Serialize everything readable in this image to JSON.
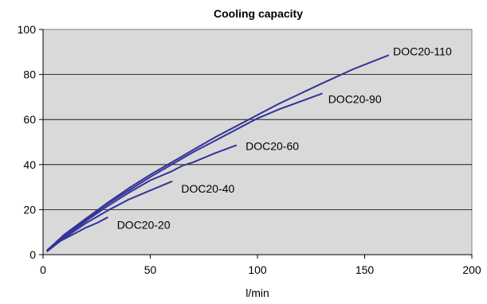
{
  "chart_data": {
    "type": "line",
    "title": "Cooling capacity",
    "xlabel": "l/min",
    "ylabel": "",
    "xlim": [
      0,
      200
    ],
    "ylim": [
      0,
      100
    ],
    "xticks": [
      0,
      50,
      100,
      150,
      200
    ],
    "yticks": [
      0,
      20,
      40,
      60,
      80,
      100
    ],
    "grid": {
      "horizontal": true,
      "vertical": false
    },
    "plot_background": "#d9d9d9",
    "line_color": "#333399",
    "series": [
      {
        "name": "DOC20-110",
        "x": [
          2,
          10,
          20,
          30,
          40,
          50,
          60,
          70,
          80,
          90,
          100,
          110,
          120,
          130,
          145,
          161
        ],
        "y": [
          2,
          9,
          16,
          23,
          29.5,
          35.5,
          41,
          46.5,
          52,
          57,
          62,
          67,
          71.5,
          76,
          82.5,
          88.5
        ]
      },
      {
        "name": "DOC20-90",
        "x": [
          2,
          10,
          20,
          30,
          40,
          50,
          60,
          70,
          80,
          90,
          100,
          110,
          120,
          130
        ],
        "y": [
          2,
          8.5,
          15.5,
          22.5,
          28.5,
          34.5,
          40,
          45.5,
          50.5,
          55.5,
          60.5,
          64.5,
          68,
          71.5
        ]
      },
      {
        "name": "DOC20-60",
        "x": [
          2,
          10,
          20,
          30,
          40,
          50,
          60,
          65,
          70,
          80,
          90
        ],
        "y": [
          2,
          8,
          15,
          21.5,
          27.5,
          33,
          37,
          39.5,
          41,
          45,
          48.5
        ]
      },
      {
        "name": "DOC20-40",
        "x": [
          2,
          10,
          20,
          30,
          40,
          50,
          60
        ],
        "y": [
          2,
          7.5,
          14,
          19.5,
          24.5,
          28.5,
          32.5
        ]
      },
      {
        "name": "DOC20-20",
        "x": [
          2,
          8,
          15,
          20,
          25,
          30
        ],
        "y": [
          1.5,
          6,
          9.5,
          12,
          14,
          16.5
        ]
      }
    ]
  }
}
